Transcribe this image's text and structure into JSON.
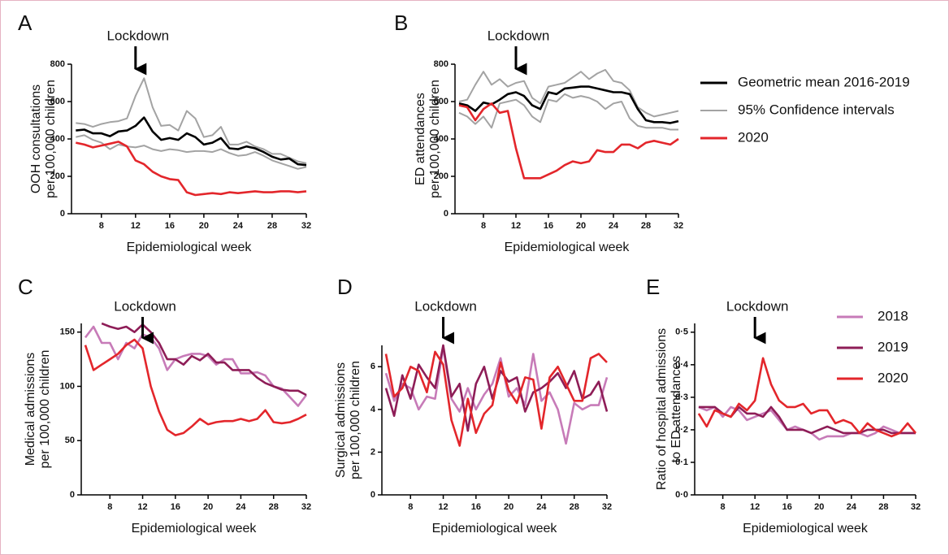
{
  "chart_data": [
    {
      "type": "line",
      "panel_label": "A",
      "annotation": {
        "text": "Lockdown",
        "x": 12
      },
      "x_label": "Epidemiological week",
      "y_label": [
        "OOH consultations",
        "per 100,000 children"
      ],
      "x": [
        5,
        6,
        7,
        8,
        9,
        10,
        11,
        12,
        13,
        14,
        15,
        16,
        17,
        18,
        19,
        20,
        21,
        22,
        23,
        24,
        25,
        26,
        27,
        28,
        29,
        30,
        31,
        32
      ],
      "xlim": [
        4.5,
        32
      ],
      "xticks": [
        8,
        12,
        16,
        20,
        24,
        28,
        32
      ],
      "ylim": [
        0,
        800
      ],
      "yticks": [
        0,
        200,
        400,
        600,
        800
      ],
      "series": [
        {
          "color": "#a3a3a3",
          "values": [
            485,
            480,
            465,
            480,
            490,
            495,
            510,
            630,
            725,
            570,
            470,
            475,
            445,
            550,
            510,
            410,
            420,
            465,
            370,
            370,
            385,
            360,
            345,
            320,
            320,
            300,
            280,
            270
          ]
        },
        {
          "color": "#a3a3a3",
          "values": [
            410,
            420,
            395,
            380,
            345,
            370,
            360,
            355,
            365,
            345,
            335,
            345,
            340,
            330,
            335,
            335,
            330,
            345,
            325,
            310,
            315,
            330,
            310,
            285,
            270,
            255,
            240,
            250
          ]
        },
        {
          "color": "#000000",
          "values": [
            445,
            450,
            430,
            430,
            415,
            440,
            445,
            470,
            515,
            440,
            395,
            405,
            395,
            430,
            410,
            370,
            380,
            405,
            350,
            345,
            360,
            350,
            330,
            305,
            290,
            295,
            265,
            260
          ]
        },
        {
          "color": "#e3262b",
          "values": [
            380,
            370,
            355,
            365,
            375,
            385,
            360,
            285,
            265,
            225,
            200,
            185,
            180,
            115,
            100,
            105,
            110,
            105,
            115,
            110,
            115,
            120,
            115,
            115,
            120,
            120,
            115,
            120
          ]
        }
      ]
    },
    {
      "type": "line",
      "panel_label": "B",
      "annotation": {
        "text": "Lockdown",
        "x": 12
      },
      "x_label": "Epidemiological week",
      "y_label": [
        "ED attendances",
        "per 100,000 children"
      ],
      "x": [
        5,
        6,
        7,
        8,
        9,
        10,
        11,
        12,
        13,
        14,
        15,
        16,
        17,
        18,
        19,
        20,
        21,
        22,
        23,
        24,
        25,
        26,
        27,
        28,
        29,
        30,
        31,
        32
      ],
      "xlim": [
        4.5,
        32
      ],
      "xticks": [
        8,
        12,
        16,
        20,
        24,
        28,
        32
      ],
      "ylim": [
        0,
        800
      ],
      "yticks": [
        0,
        200,
        400,
        600,
        800
      ],
      "series": [
        {
          "name": "95% Confidence intervals",
          "color": "#a3a3a3",
          "values": [
            600,
            610,
            690,
            760,
            690,
            720,
            680,
            700,
            710,
            620,
            590,
            680,
            690,
            700,
            730,
            760,
            720,
            750,
            770,
            710,
            700,
            660,
            570,
            540,
            520,
            530,
            540,
            550
          ]
        },
        {
          "color": "#a3a3a3",
          "values": [
            540,
            520,
            480,
            520,
            460,
            590,
            600,
            610,
            580,
            520,
            490,
            610,
            600,
            640,
            620,
            630,
            620,
            600,
            560,
            590,
            600,
            510,
            470,
            460,
            460,
            460,
            450,
            450
          ]
        },
        {
          "name": "Geometric mean 2016-2019",
          "color": "#000000",
          "values": [
            590,
            580,
            550,
            595,
            585,
            610,
            640,
            650,
            630,
            580,
            560,
            650,
            640,
            670,
            675,
            680,
            680,
            670,
            660,
            650,
            650,
            640,
            560,
            500,
            490,
            490,
            485,
            495
          ]
        },
        {
          "name": "2020",
          "color": "#e3262b",
          "values": [
            580,
            570,
            500,
            560,
            590,
            540,
            550,
            350,
            190,
            190,
            190,
            210,
            230,
            260,
            280,
            270,
            280,
            340,
            330,
            330,
            370,
            370,
            350,
            380,
            390,
            380,
            370,
            400
          ]
        }
      ]
    },
    {
      "type": "line",
      "panel_label": "C",
      "annotation": {
        "text": "Lockdown",
        "x": 12
      },
      "x_label": "Epidemiological week",
      "y_label": [
        "Medical admissions",
        "per 100,000 children"
      ],
      "x": [
        5,
        6,
        7,
        8,
        9,
        10,
        11,
        12,
        13,
        14,
        15,
        16,
        17,
        18,
        19,
        20,
        21,
        22,
        23,
        24,
        25,
        26,
        27,
        28,
        29,
        30,
        31,
        32
      ],
      "xlim": [
        4.5,
        32
      ],
      "xticks": [
        8,
        12,
        16,
        20,
        24,
        28,
        32
      ],
      "ylim": [
        0,
        158
      ],
      "yticks": [
        0,
        50,
        100,
        150
      ],
      "series": [
        {
          "color": "#c77bb8",
          "values": [
            145,
            155,
            140,
            140,
            125,
            140,
            135,
            148,
            145,
            135,
            115,
            125,
            128,
            130,
            130,
            128,
            120,
            125,
            125,
            112,
            112,
            113,
            110,
            100,
            98,
            90,
            82,
            92
          ]
        },
        {
          "color": "#8e1d57",
          "values": [
            null,
            null,
            158,
            155,
            153,
            155,
            150,
            157,
            150,
            140,
            125,
            125,
            120,
            128,
            124,
            130,
            122,
            122,
            115,
            115,
            115,
            108,
            103,
            100,
            97,
            96,
            96,
            92
          ]
        },
        {
          "color": "#e3262b",
          "values": [
            138,
            115,
            120,
            125,
            130,
            138,
            143,
            135,
            100,
            77,
            60,
            55,
            57,
            63,
            70,
            65,
            67,
            68,
            68,
            70,
            68,
            70,
            78,
            67,
            66,
            67,
            70,
            74
          ]
        }
      ]
    },
    {
      "type": "line",
      "panel_label": "D",
      "annotation": {
        "text": "Lockdown",
        "x": 12
      },
      "x_label": "Epidemiological week",
      "y_label": [
        "Surgical admissions",
        "per 100,000 children"
      ],
      "x": [
        5,
        6,
        7,
        8,
        9,
        10,
        11,
        12,
        13,
        14,
        15,
        16,
        17,
        18,
        19,
        20,
        21,
        22,
        23,
        24,
        25,
        26,
        27,
        28,
        29,
        30,
        31,
        32
      ],
      "xlim": [
        4.5,
        32
      ],
      "xticks": [
        8,
        12,
        16,
        20,
        24,
        28,
        32
      ],
      "ylim": [
        0,
        7
      ],
      "yticks": [
        0,
        2,
        4,
        6
      ],
      "series": [
        {
          "color": "#c77bb8",
          "values": [
            5.7,
            4.4,
            5.2,
            5.0,
            4.0,
            4.6,
            4.5,
            6.9,
            4.5,
            3.9,
            5.0,
            4.0,
            4.7,
            5.2,
            6.4,
            4.6,
            5.0,
            4.2,
            6.6,
            4.4,
            4.8,
            4.0,
            2.4,
            4.3,
            4.0,
            4.2,
            4.2,
            5.5
          ]
        },
        {
          "color": "#8e1d57",
          "values": [
            5.0,
            3.7,
            5.6,
            4.5,
            6.1,
            5.5,
            5.0,
            7.0,
            4.6,
            5.2,
            3.0,
            5.2,
            6.0,
            4.5,
            5.8,
            5.3,
            5.5,
            3.9,
            4.8,
            5.0,
            5.3,
            5.7,
            5.0,
            5.8,
            4.5,
            4.7,
            5.3,
            3.9
          ]
        },
        {
          "color": "#e3262b",
          "values": [
            6.6,
            4.6,
            5.0,
            6.0,
            5.8,
            4.8,
            6.7,
            6.1,
            3.5,
            2.3,
            4.5,
            2.9,
            3.8,
            4.2,
            6.2,
            4.9,
            4.3,
            5.5,
            5.4,
            3.1,
            5.5,
            6.0,
            5.2,
            4.4,
            4.4,
            6.4,
            6.6,
            6.2
          ]
        }
      ]
    },
    {
      "type": "line",
      "panel_label": "E",
      "annotation": {
        "text": "Lockdown",
        "x": 12
      },
      "x_label": "Epidemiological week",
      "y_label": [
        "Ratio of hospital admissions",
        "to ED attendances"
      ],
      "x": [
        5,
        6,
        7,
        8,
        9,
        10,
        11,
        12,
        13,
        14,
        15,
        16,
        17,
        18,
        19,
        20,
        21,
        22,
        23,
        24,
        25,
        26,
        27,
        28,
        29,
        30,
        31,
        32
      ],
      "xlim": [
        4.5,
        32
      ],
      "xticks": [
        8,
        12,
        16,
        20,
        24,
        28,
        32
      ],
      "ylim": [
        0,
        0.527
      ],
      "yticks": [
        {
          "value": 0,
          "label": "0·0"
        },
        {
          "value": 0.1,
          "label": "0·1"
        },
        {
          "value": 0.2,
          "label": "0·2"
        },
        {
          "value": 0.3,
          "label": "0·3"
        },
        {
          "value": 0.4,
          "label": "0·4"
        },
        {
          "value": 0.5,
          "label": "0·5"
        }
      ],
      "series": [
        {
          "name": "2018",
          "color": "#c77bb8",
          "values": [
            0.27,
            0.26,
            0.27,
            0.24,
            0.27,
            0.26,
            0.23,
            0.24,
            0.25,
            0.26,
            0.23,
            0.2,
            0.21,
            0.2,
            0.19,
            0.17,
            0.18,
            0.18,
            0.18,
            0.19,
            0.19,
            0.18,
            0.19,
            0.21,
            0.2,
            0.19,
            0.19,
            0.19
          ]
        },
        {
          "name": "2019",
          "color": "#8e1d57",
          "values": [
            0.27,
            0.27,
            0.27,
            0.25,
            0.24,
            0.27,
            0.25,
            0.25,
            0.24,
            0.27,
            0.24,
            0.2,
            0.2,
            0.2,
            0.19,
            0.2,
            0.21,
            0.2,
            0.19,
            0.19,
            0.19,
            0.2,
            0.2,
            0.2,
            0.19,
            0.19,
            0.19,
            0.19
          ]
        },
        {
          "name": "2020",
          "color": "#e3262b",
          "values": [
            0.25,
            0.21,
            0.26,
            0.25,
            0.24,
            0.28,
            0.26,
            0.29,
            0.42,
            0.34,
            0.29,
            0.27,
            0.27,
            0.28,
            0.25,
            0.26,
            0.26,
            0.22,
            0.23,
            0.22,
            0.19,
            0.22,
            0.2,
            0.19,
            0.18,
            0.19,
            0.22,
            0.19
          ]
        }
      ]
    }
  ]
}
